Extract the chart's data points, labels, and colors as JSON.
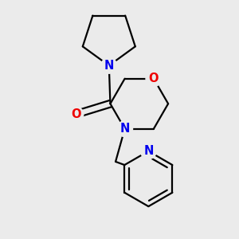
{
  "background_color": "#ebebeb",
  "bond_color": "#000000",
  "N_color": "#0000ee",
  "O_color": "#ee0000",
  "N_label": "N",
  "O_label": "O",
  "carbonyl_label": "O",
  "fig_width": 3.0,
  "fig_height": 3.0,
  "line_width": 1.6,
  "font_size_heteroatom": 10.5
}
